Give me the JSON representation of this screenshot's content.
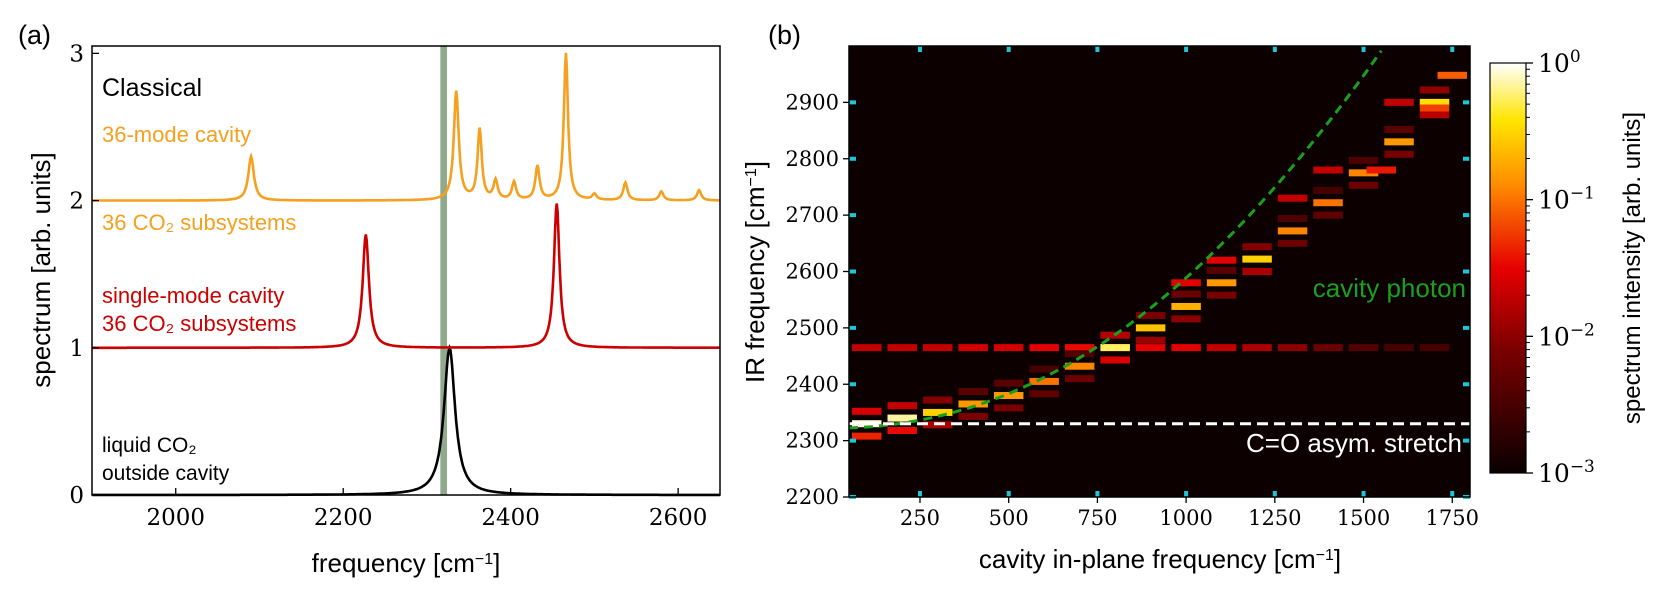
{
  "figure": {
    "panel_a_label": "(a)",
    "panel_b_label": "(b)"
  },
  "chart_data": [
    {
      "type": "line",
      "panel": "(a)",
      "title": "",
      "xlabel": "frequency [cm",
      "xlabel_sup": "−1",
      "xlabel_end": "]",
      "ylabel": "spectrum [arb. units]",
      "xlim": [
        1900,
        2650
      ],
      "ylim": [
        0,
        3.05
      ],
      "xticks": [
        2000,
        2200,
        2400,
        2600
      ],
      "yticks": [
        0,
        1,
        2,
        3
      ],
      "grid": false,
      "legend": "none",
      "annotations": {
        "classical": "Classical",
        "multimode_line1": "36-mode cavity",
        "multimode_line2": "36 CO₂ subsystems",
        "single_line1": "single-mode cavity",
        "single_line2": "36 CO₂ subsystems",
        "liquid_line1": "liquid CO₂",
        "liquid_line2": "outside cavity"
      },
      "vertical_band": {
        "center": 2320,
        "width": 8,
        "color": "#8aa785"
      },
      "series": [
        {
          "color": "#000000",
          "offset": 0,
          "peaks": [
            {
              "x": 2327,
              "h": 1.0,
              "w": 16
            }
          ]
        },
        {
          "color": "#cc0000",
          "offset": 1,
          "peaks": [
            {
              "x": 2227,
              "h": 0.77,
              "w": 9
            },
            {
              "x": 2455,
              "h": 0.98,
              "w": 8
            }
          ]
        },
        {
          "color": "#f5a01e",
          "offset": 2,
          "peaks": [
            {
              "x": 2090,
              "h": 0.3,
              "w": 8
            },
            {
              "x": 2335,
              "h": 0.74,
              "w": 7
            },
            {
              "x": 2363,
              "h": 0.48,
              "w": 6
            },
            {
              "x": 2382,
              "h": 0.13,
              "w": 6
            },
            {
              "x": 2404,
              "h": 0.12,
              "w": 6
            },
            {
              "x": 2432,
              "h": 0.23,
              "w": 6
            },
            {
              "x": 2466,
              "h": 1.0,
              "w": 6
            },
            {
              "x": 2500,
              "h": 0.04,
              "w": 6
            },
            {
              "x": 2537,
              "h": 0.12,
              "w": 6
            },
            {
              "x": 2580,
              "h": 0.06,
              "w": 6
            },
            {
              "x": 2625,
              "h": 0.07,
              "w": 6
            }
          ]
        }
      ]
    },
    {
      "type": "heatmap",
      "panel": "(b)",
      "title": "",
      "xlabel": "cavity in-plane frequency [cm",
      "xlabel_sup": "−1",
      "xlabel_end": "]",
      "ylabel": "IR frequency [cm",
      "ylabel_sup": "−1",
      "ylabel_end": "]",
      "xlim": [
        50,
        1800
      ],
      "ylim": [
        2200,
        3000
      ],
      "xticks": [
        250,
        500,
        750,
        1000,
        1250,
        1500,
        1750
      ],
      "yticks": [
        2200,
        2300,
        2400,
        2500,
        2600,
        2700,
        2800,
        2900
      ],
      "grid": false,
      "colorscale": "hot, log",
      "colorbar": {
        "label": "spectrum intensity [arb. units]",
        "tick_base": "10",
        "tick_exps": [
          "−3",
          "−2",
          "−1",
          "0"
        ],
        "range": [
          0.001,
          1
        ]
      },
      "background": "#0c0000",
      "cavity_x": [
        100,
        200,
        300,
        400,
        500,
        600,
        700,
        800,
        900,
        1000,
        1100,
        1200,
        1300,
        1400,
        1500,
        1600,
        1700
      ],
      "upper_branch_y": [
        2330,
        2340,
        2350,
        2365,
        2380,
        2405,
        2432,
        2465,
        2500,
        2538,
        2580,
        2622,
        2672,
        2722,
        2775,
        2830,
        2900
      ],
      "upper_branch_intensity": [
        0.9,
        0.7,
        0.3,
        0.15,
        0.15,
        0.1,
        0.12,
        0.55,
        0.25,
        0.2,
        0.15,
        0.3,
        0.12,
        0.1,
        0.12,
        0.15,
        0.35
      ],
      "molecular_band_y": 2465,
      "molecular_band_intensity": [
        0.02,
        0.02,
        0.02,
        0.025,
        0.025,
        0.03,
        0.035,
        0.04,
        0.03,
        0.03,
        0.02,
        0.015,
        0.01,
        0.006,
        0.004,
        0.003,
        0.003
      ],
      "extra_points": [
        {
          "x": 1750,
          "y": 2948,
          "intensity": 0.08
        },
        {
          "x": 1700,
          "y": 2890,
          "intensity": 0.06
        },
        {
          "x": 1600,
          "y": 2900,
          "intensity": 0.02
        },
        {
          "x": 1550,
          "y": 2780,
          "intensity": 0.04
        },
        {
          "x": 1400,
          "y": 2780,
          "intensity": 0.02
        },
        {
          "x": 1300,
          "y": 2730,
          "intensity": 0.02
        },
        {
          "x": 1100,
          "y": 2620,
          "intensity": 0.03
        },
        {
          "x": 1000,
          "y": 2580,
          "intensity": 0.03
        }
      ],
      "cavity_photon_curve": {
        "label": "cavity photon",
        "color": "#1aa01a",
        "x0": 2322,
        "c": 0.00031
      },
      "co_stretch_line": {
        "label": "C=O asym. stretch",
        "y": 2330,
        "color": "#ffffff"
      },
      "edge_marks_color": "#1fc6d6"
    }
  ]
}
